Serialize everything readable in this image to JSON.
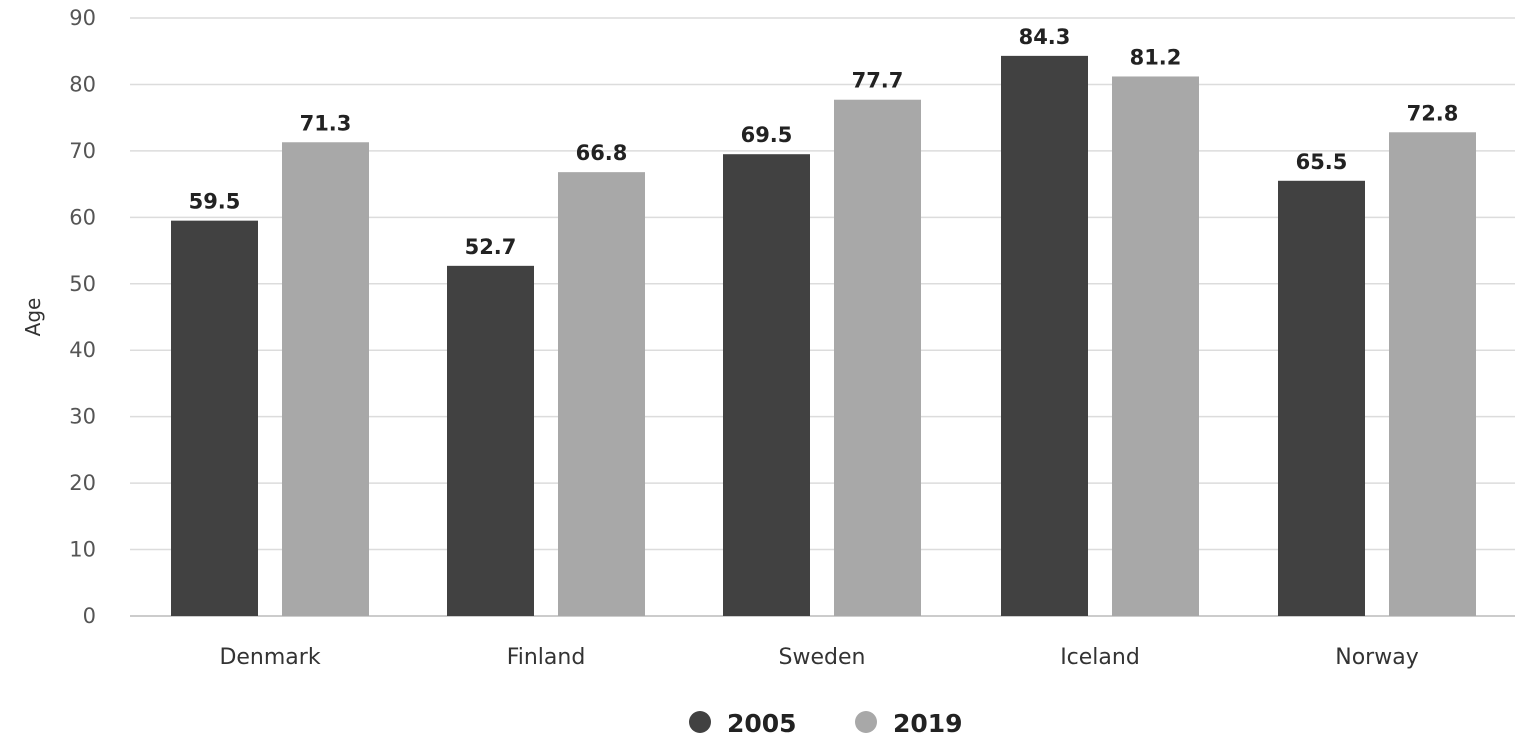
{
  "chart_data": {
    "type": "bar",
    "title": "",
    "xlabel": "",
    "ylabel": "Age",
    "ylim": [
      0,
      90
    ],
    "yticks": [
      0,
      10,
      20,
      30,
      40,
      50,
      60,
      70,
      80,
      90
    ],
    "grid": true,
    "legend_position": "bottom-center",
    "categories": [
      "Denmark",
      "Finland",
      "Sweden",
      "Iceland",
      "Norway"
    ],
    "series": [
      {
        "name": "2005",
        "color": "#414141",
        "values": [
          59.5,
          52.7,
          69.5,
          84.3,
          65.5
        ]
      },
      {
        "name": "2019",
        "color": "#a8a8a8",
        "values": [
          71.3,
          66.8,
          77.7,
          81.2,
          72.8
        ]
      }
    ]
  }
}
